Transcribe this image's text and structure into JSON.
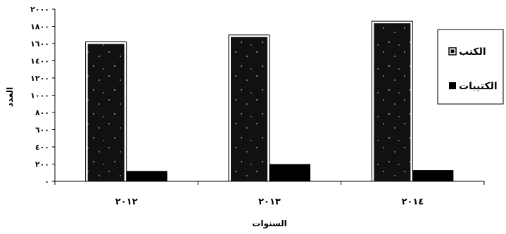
{
  "chart_data": {
    "type": "bar",
    "categories": [
      "٢٠١٢",
      "٢٠١٣",
      "٢٠١٤"
    ],
    "series": [
      {
        "name": "الكتب",
        "values": [
          1620,
          1700,
          1860
        ],
        "color": "#111111",
        "pattern": "speckled"
      },
      {
        "name": "الكتيبات",
        "values": [
          120,
          200,
          130
        ],
        "color": "#000000",
        "pattern": "solid"
      }
    ],
    "ylim": [
      0,
      2000
    ],
    "yticks": [
      0,
      200,
      400,
      600,
      800,
      1000,
      1200,
      1400,
      1600,
      1800,
      2000
    ],
    "ytick_labels": [
      "٠",
      "٢٠٠",
      "٤٠٠",
      "٦٠٠",
      "٨٠٠",
      "١٠٠٠",
      "١٢٠٠",
      "١٤٠٠",
      "١٦٠٠",
      "١٨٠٠",
      "٢٠٠٠"
    ],
    "xlabel": "السنوات",
    "ylabel": "العدد",
    "legend_position": "right",
    "grid": false
  }
}
